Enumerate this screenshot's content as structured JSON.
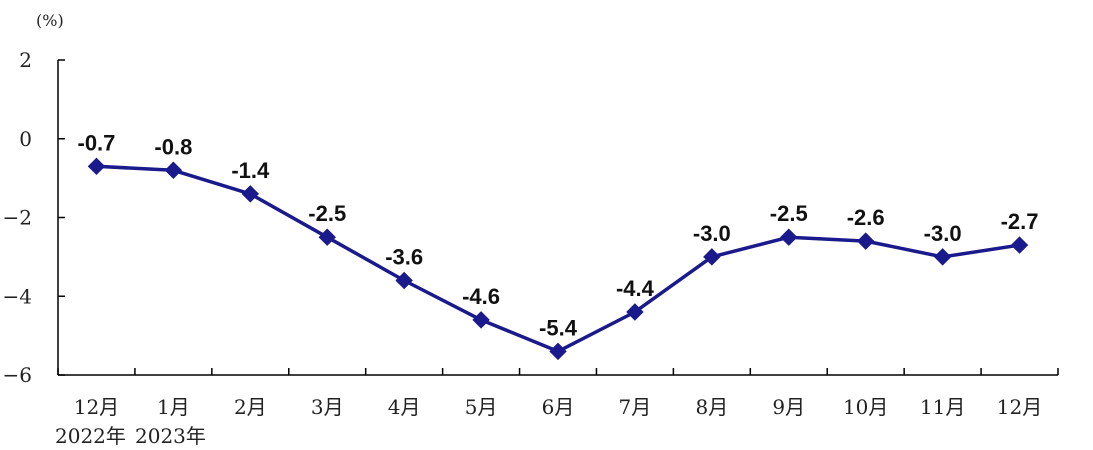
{
  "chart_data": {
    "type": "line",
    "title": "",
    "xlabel": "",
    "ylabel": "",
    "unit_label": "(%)",
    "categories": [
      "12月",
      "1月",
      "2月",
      "3月",
      "4月",
      "5月",
      "6月",
      "7月",
      "8月",
      "9月",
      "10月",
      "11月",
      "12月"
    ],
    "year_labels": [
      "2022年",
      "2023年"
    ],
    "series": [
      {
        "values": [
          -0.7,
          -0.8,
          -1.4,
          -2.5,
          -3.6,
          -4.6,
          -5.4,
          -4.4,
          -3.0,
          -2.5,
          -2.6,
          -3.0,
          -2.7
        ]
      }
    ],
    "data_labels": [
      "-0.7",
      "-0.8",
      "-1.4",
      "-2.5",
      "-3.6",
      "-4.6",
      "-5.4",
      "-4.4",
      "-3.0",
      "-2.5",
      "-2.6",
      "-3.0",
      "-2.7"
    ],
    "y_ticks": [
      2,
      0,
      -2,
      -4,
      -6
    ],
    "y_tick_labels": [
      "2",
      "0",
      "−2",
      "−4",
      "−6"
    ],
    "ylim": [
      -6,
      2
    ],
    "grid": false,
    "legend": "none",
    "line_color": "#1a1a8c",
    "marker": "diamond"
  }
}
